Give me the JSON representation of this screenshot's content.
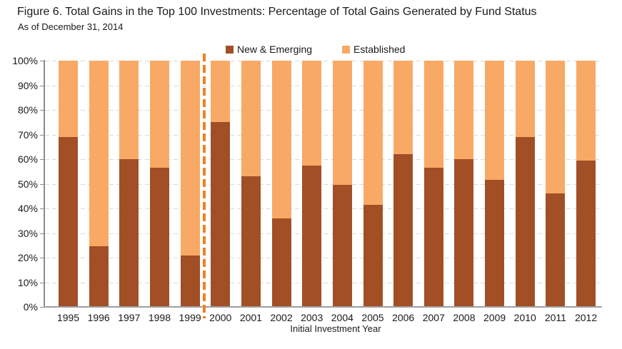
{
  "chart_data": {
    "type": "bar",
    "stacked": true,
    "title": "Figure 6. Total Gains in the Top 100 Investments: Percentage of Total Gains Generated by Fund Status",
    "subtitle": "As of December 31, 2014",
    "xlabel": "Initial Investment Year",
    "categories": [
      "1995",
      "1996",
      "1997",
      "1998",
      "1999",
      "2000",
      "2001",
      "2002",
      "2003",
      "2004",
      "2005",
      "2006",
      "2007",
      "2008",
      "2009",
      "2010",
      "2011",
      "2012"
    ],
    "series": [
      {
        "name": "New & Emerging",
        "color": "#A24F26",
        "values": [
          69,
          24.5,
          60,
          56.5,
          21,
          75,
          53,
          36,
          57.5,
          49.5,
          41.5,
          62,
          56.5,
          60,
          51.5,
          69,
          46,
          59.5
        ]
      },
      {
        "name": "Established",
        "color": "#F8A965",
        "values": [
          31,
          75.5,
          40,
          43.5,
          79,
          25,
          47,
          64,
          42.5,
          50.5,
          58.5,
          38,
          43.5,
          40,
          48.5,
          31,
          54,
          40.5
        ]
      }
    ],
    "ylim": [
      0,
      100
    ],
    "ytick_labels": [
      "0%",
      "10%",
      "20%",
      "30%",
      "40%",
      "50%",
      "60%",
      "70%",
      "80%",
      "90%",
      "100%"
    ],
    "grid": "horizontal-dashed",
    "legend_position": "top-center",
    "divider": {
      "between": [
        "1999",
        "2000"
      ],
      "style": "dashed",
      "color": "#F08022"
    },
    "colors": {
      "gridline": "#D9D9D9",
      "axis": "#8C8C8C",
      "baseline": "#9E9E9E",
      "text": "#1A1A1A"
    }
  }
}
